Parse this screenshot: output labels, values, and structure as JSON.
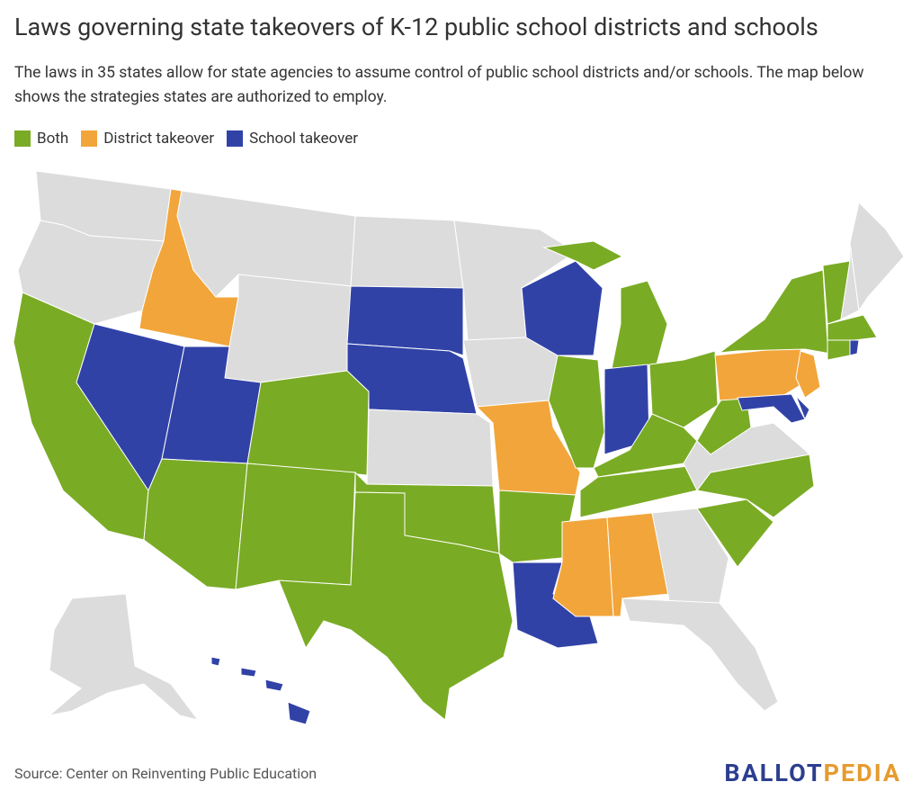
{
  "header": {
    "title": "Laws governing state takeovers of K-12 public school districts and schools",
    "subtitle": "The laws in 35 states allow for state agencies to assume control of public school districts and/or schools. The map below shows the strategies states are authorized to employ."
  },
  "legend": [
    {
      "name": "Both",
      "color": "#7aab24"
    },
    {
      "name": "District takeover",
      "color": "#f2a53a"
    },
    {
      "name": "School takeover",
      "color": "#3142a7"
    }
  ],
  "other_color": "#dcdcdc",
  "footer": {
    "source": "Source: Center on Reinventing Public Education",
    "logo": [
      {
        "text": "BALLOT",
        "color": "#2c3e8f"
      },
      {
        "text": "PEDIA",
        "color": "#e69b2e"
      }
    ]
  }
}
